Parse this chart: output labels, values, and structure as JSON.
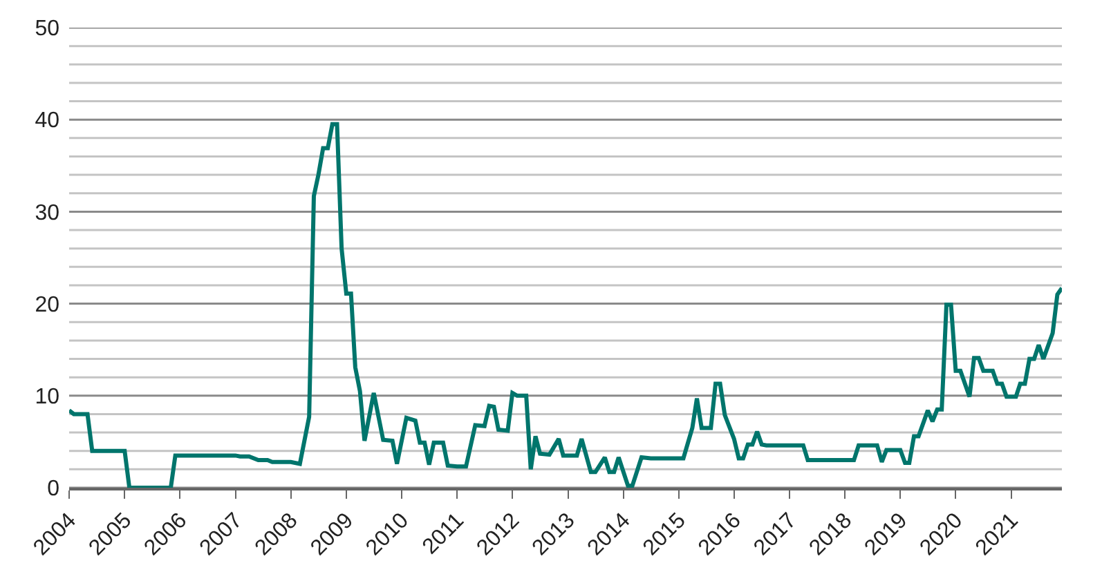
{
  "chart_data": {
    "type": "line",
    "x": [
      "2004-01",
      "2004-02",
      "2004-05",
      "2004-06",
      "2005-01",
      "2005-02",
      "2005-11",
      "2005-12",
      "2007-01",
      "2007-02",
      "2007-04",
      "2007-06",
      "2007-08",
      "2007-09",
      "2008-01",
      "2008-03",
      "2008-05",
      "2008-06",
      "2008-07",
      "2008-08",
      "2008-09",
      "2008-10",
      "2008-11",
      "2008-12",
      "2009-01",
      "2009-02",
      "2009-03",
      "2009-04",
      "2009-05",
      "2009-07",
      "2009-09",
      "2009-11",
      "2009-12",
      "2010-02",
      "2010-04",
      "2010-05",
      "2010-06",
      "2010-07",
      "2010-08",
      "2010-10",
      "2010-11",
      "2011-01",
      "2011-03",
      "2011-05",
      "2011-07",
      "2011-08",
      "2011-09",
      "2011-10",
      "2011-12",
      "2012-01",
      "2012-02",
      "2012-04",
      "2012-05",
      "2012-06",
      "2012-07",
      "2012-09",
      "2012-11",
      "2012-12",
      "2013-03",
      "2013-04",
      "2013-06",
      "2013-07",
      "2013-09",
      "2013-10",
      "2013-11",
      "2013-12",
      "2014-02",
      "2014-03",
      "2014-05",
      "2014-07",
      "2015-02",
      "2015-04",
      "2015-05",
      "2015-06",
      "2015-08",
      "2015-09",
      "2015-10",
      "2015-11",
      "2016-01",
      "2016-02",
      "2016-03",
      "2016-04",
      "2016-05",
      "2016-06",
      "2016-07",
      "2016-08",
      "2017-04",
      "2017-05",
      "2018-03",
      "2018-04",
      "2018-08",
      "2018-09",
      "2018-10",
      "2019-01",
      "2019-02",
      "2019-03",
      "2019-04",
      "2019-05",
      "2019-07",
      "2019-08",
      "2019-09",
      "2019-10",
      "2019-11",
      "2019-12",
      "2020-01",
      "2020-02",
      "2020-04",
      "2020-05",
      "2020-06",
      "2020-07",
      "2020-09",
      "2020-10",
      "2020-11",
      "2020-12",
      "2021-02",
      "2021-03",
      "2021-04",
      "2021-05",
      "2021-06",
      "2021-07",
      "2021-08",
      "2021-10",
      "2021-11",
      "2021-12"
    ],
    "series": [
      {
        "color": "#00756c",
        "values": [
          8.4,
          8.0,
          8.0,
          4.0,
          4.0,
          0,
          0,
          3.5,
          3.5,
          3.4,
          3.4,
          3.0,
          3.0,
          2.8,
          2.8,
          2.6,
          7.7,
          31.7,
          34,
          36.9,
          36.9,
          39.5,
          39.5,
          26,
          21.1,
          21.1,
          13.1,
          10.5,
          5.1,
          10.3,
          5.2,
          5.1,
          2.6,
          7.6,
          7.3,
          4.9,
          4.9,
          2.5,
          4.9,
          4.9,
          2.4,
          2.3,
          2.3,
          6.8,
          6.7,
          8.9,
          8.8,
          6.3,
          6.2,
          10.3,
          10.0,
          10.0,
          2.0,
          5.6,
          3.7,
          3.6,
          5.3,
          3.5,
          3.5,
          5.3,
          1.7,
          1.7,
          3.3,
          1.7,
          1.7,
          3.3,
          0.2,
          0.2,
          3.3,
          3.2,
          3.2,
          6.5,
          9.7,
          6.5,
          6.5,
          11.3,
          11.3,
          7.9,
          5.3,
          3.2,
          3.2,
          4.7,
          4.7,
          6.1,
          4.7,
          4.6,
          4.6,
          3.0,
          3.0,
          4.6,
          4.6,
          2.8,
          4.1,
          4.1,
          2.7,
          2.7,
          5.6,
          5.6,
          8.4,
          7.2,
          8.5,
          8.5,
          19.9,
          19.9,
          12.7,
          12.7,
          9.9,
          14.1,
          14.1,
          12.7,
          12.7,
          11.3,
          11.3,
          9.9,
          9.9,
          11.3,
          11.3,
          14.0,
          14.0,
          15.5,
          14.0,
          16.8,
          21.0,
          21.7
        ]
      }
    ],
    "xlim": [
      "2004-01",
      "2021-12"
    ],
    "xticks": [
      {
        "value": "2004",
        "label": "2004"
      },
      {
        "value": "2005",
        "label": "2005"
      },
      {
        "value": "2006",
        "label": "2006"
      },
      {
        "value": "2007",
        "label": "2007"
      },
      {
        "value": "2008",
        "label": "2008"
      },
      {
        "value": "2009",
        "label": "2009"
      },
      {
        "value": "2010",
        "label": "2010"
      },
      {
        "value": "2011",
        "label": "2011"
      },
      {
        "value": "2012",
        "label": "2012"
      },
      {
        "value": "2013",
        "label": "2013"
      },
      {
        "value": "2014",
        "label": "2014"
      },
      {
        "value": "2015",
        "label": "2015"
      },
      {
        "value": "2016",
        "label": "2016"
      },
      {
        "value": "2017",
        "label": "2017"
      },
      {
        "value": "2018",
        "label": "2018"
      },
      {
        "value": "2019",
        "label": "2019"
      },
      {
        "value": "2020",
        "label": "2020"
      },
      {
        "value": "2021",
        "label": "2021"
      }
    ],
    "ylim": [
      0,
      50
    ],
    "yticks": [
      0,
      {
        "value": 2,
        "label": null
      },
      {
        "value": 4,
        "label": null
      },
      {
        "value": 6,
        "label": null
      },
      {
        "value": 8,
        "label": null
      },
      10,
      {
        "value": 12,
        "label": null
      },
      {
        "value": 14,
        "label": null
      },
      {
        "value": 16,
        "label": null
      },
      {
        "value": 18,
        "label": null
      },
      20,
      {
        "value": 22,
        "label": null
      },
      {
        "value": 24,
        "label": null
      },
      {
        "value": 26,
        "label": null
      },
      {
        "value": 28,
        "label": null
      },
      30,
      {
        "value": 32,
        "label": null
      },
      {
        "value": 34,
        "label": null
      },
      {
        "value": 36,
        "label": null
      },
      {
        "value": 38,
        "label": null
      },
      40,
      {
        "value": 42,
        "label": null
      },
      {
        "value": 44,
        "label": null
      },
      {
        "value": 46,
        "label": null
      },
      {
        "value": 48,
        "label": null
      },
      50
    ],
    "grid": "y",
    "marker": "none",
    "line_style": "solid"
  }
}
